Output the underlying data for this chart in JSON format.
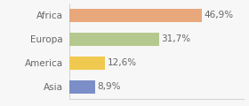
{
  "categories": [
    "Africa",
    "Europa",
    "America",
    "Asia"
  ],
  "values": [
    46.9,
    31.7,
    12.6,
    8.9
  ],
  "labels": [
    "46,9%",
    "31,7%",
    "12,6%",
    "8,9%"
  ],
  "bar_colors": [
    "#e8a87c",
    "#b5c98e",
    "#f0c950",
    "#7b8ec8"
  ],
  "background_color": "#f7f7f7",
  "xlim": [
    0,
    62
  ],
  "bar_height": 0.55,
  "label_fontsize": 7.5,
  "category_fontsize": 7.5,
  "label_color": "#666666",
  "category_color": "#666666"
}
